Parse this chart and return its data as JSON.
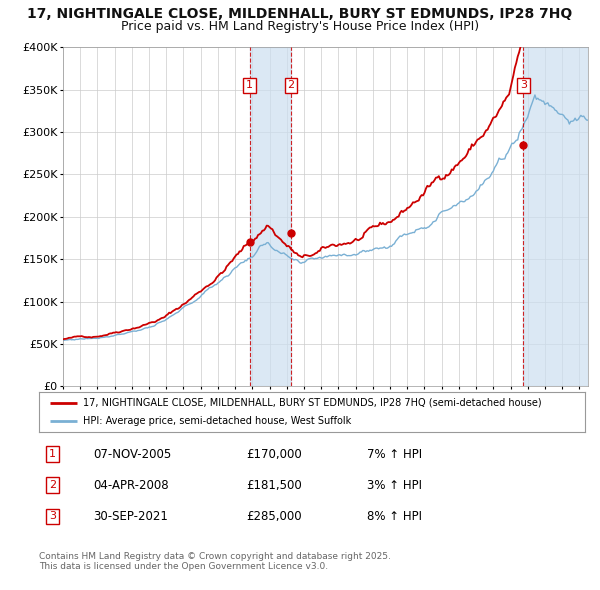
{
  "title": "17, NIGHTINGALE CLOSE, MILDENHALL, BURY ST EDMUNDS, IP28 7HQ",
  "subtitle": "Price paid vs. HM Land Registry's House Price Index (HPI)",
  "title_fontsize": 10,
  "subtitle_fontsize": 9,
  "background_color": "#ffffff",
  "plot_bg_color": "#ffffff",
  "grid_color": "#cccccc",
  "hpi_line_color": "#7ab0d4",
  "property_line_color": "#cc0000",
  "ylim": [
    0,
    400000
  ],
  "yticks": [
    0,
    50000,
    100000,
    150000,
    200000,
    250000,
    300000,
    350000,
    400000
  ],
  "ytick_labels": [
    "£0",
    "£50K",
    "£100K",
    "£150K",
    "£200K",
    "£250K",
    "£300K",
    "£350K",
    "£400K"
  ],
  "xmin_year": 1995,
  "xmax_year": 2025.5,
  "xtick_years": [
    1995,
    1996,
    1997,
    1998,
    1999,
    2000,
    2001,
    2002,
    2003,
    2004,
    2005,
    2006,
    2007,
    2008,
    2009,
    2010,
    2011,
    2012,
    2013,
    2014,
    2015,
    2016,
    2017,
    2018,
    2019,
    2020,
    2021,
    2022,
    2023,
    2024,
    2025
  ],
  "sale_events": [
    {
      "label": "1",
      "date_year": 2005.85,
      "price": 170000,
      "date_str": "07-NOV-2005",
      "price_str": "£170,000",
      "pct": "7% ↑ HPI"
    },
    {
      "label": "2",
      "date_year": 2008.25,
      "price": 181500,
      "date_str": "04-APR-2008",
      "price_str": "£181,500",
      "pct": "3% ↑ HPI"
    },
    {
      "label": "3",
      "date_year": 2021.75,
      "price": 285000,
      "date_str": "30-SEP-2021",
      "price_str": "£285,000",
      "pct": "8% ↑ HPI"
    }
  ],
  "legend_property": "17, NIGHTINGALE CLOSE, MILDENHALL, BURY ST EDMUNDS, IP28 7HQ (semi-detached house)",
  "legend_hpi": "HPI: Average price, semi-detached house, West Suffolk",
  "footer": "Contains HM Land Registry data © Crown copyright and database right 2025.\nThis data is licensed under the Open Government Licence v3.0.",
  "shade_between_sales_12": [
    2005.85,
    2008.25
  ],
  "shade_after_sale_3": [
    2021.75,
    2025.5
  ]
}
